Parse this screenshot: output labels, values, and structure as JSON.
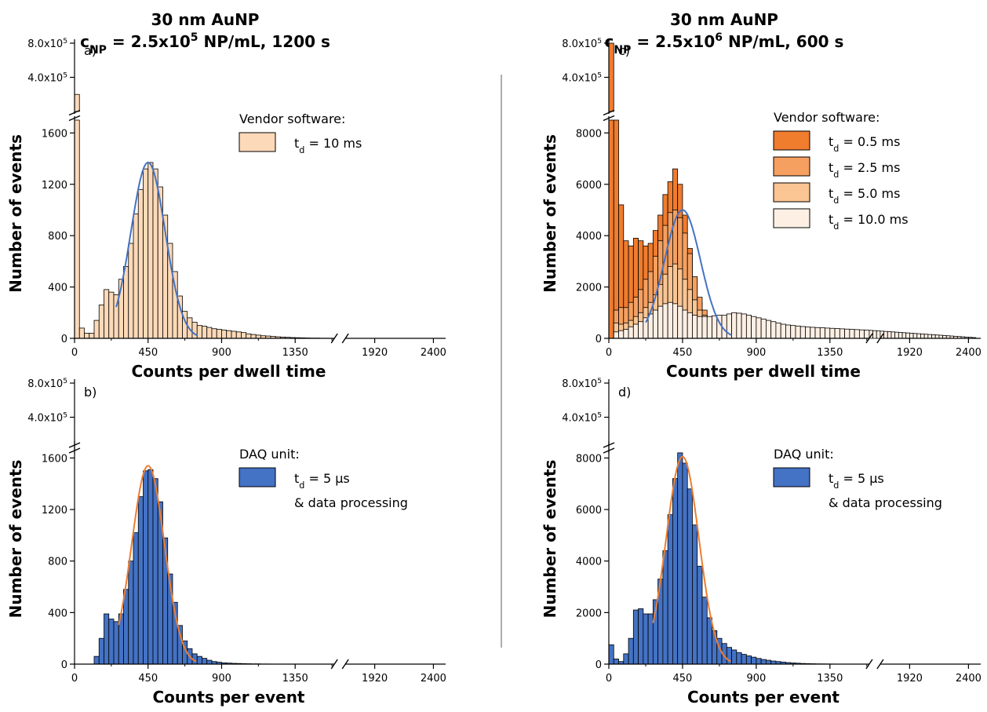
{
  "chart_data": [
    {
      "panel": "a)",
      "type": "bar",
      "title_line1": "30 nm AuNP",
      "title_line2": "c_NP = 2.5x10^5 NP/mL, 1200 s",
      "xlabel": "Counts per dwell time",
      "ylabel": "Number of events",
      "bin_width": 30,
      "x_ticks_lower": [
        "0",
        "450",
        "900",
        "1350"
      ],
      "x_ticks_upper": [
        "1920",
        "2400"
      ],
      "x_break": [
        1590,
        1680
      ],
      "y_ticks_lower": [
        "0",
        "400",
        "800",
        "1200",
        "1600"
      ],
      "y_ticks_upper": [
        "4.0x10^5",
        "8.0x10^5"
      ],
      "ylim_lower": [
        0,
        1700
      ],
      "ylim_upper": [
        0,
        800000
      ],
      "legend_title": "Vendor software:",
      "series": [
        {
          "name": "t_d = 10 ms",
          "legend_label": "10 ms",
          "color": "#fcd9b8",
          "x_start": 0,
          "values": [
            200000,
            80,
            40,
            40,
            140,
            260,
            380,
            360,
            340,
            460,
            560,
            740,
            970,
            1160,
            1320,
            1370,
            1320,
            1180,
            960,
            740,
            520,
            330,
            210,
            160,
            125,
            100,
            95,
            85,
            75,
            70,
            65,
            60,
            55,
            50,
            45,
            35,
            30,
            25,
            20,
            18,
            15,
            12,
            10,
            8,
            6,
            5,
            4,
            3,
            2,
            2,
            1,
            1,
            0
          ]
        }
      ],
      "fit": {
        "type": "gaussian",
        "color": "#4472c4",
        "peak": 1370,
        "center": 450,
        "sigma": 105,
        "range": [
          255,
          750
        ]
      }
    },
    {
      "panel": "b)",
      "type": "bar",
      "xlabel": "Counts per event",
      "ylabel": "Number of events",
      "bin_width": 30,
      "x_ticks_lower": [
        "0",
        "450",
        "900",
        "1350"
      ],
      "x_ticks_upper": [
        "1920",
        "2400"
      ],
      "x_break": [
        1590,
        1680
      ],
      "y_ticks_lower": [
        "0",
        "400",
        "800",
        "1200",
        "1600"
      ],
      "y_ticks_upper": [
        "4.0x10^5",
        "8.0x10^5"
      ],
      "ylim_lower": [
        0,
        1700
      ],
      "ylim_upper": [
        0,
        800000
      ],
      "legend_title": "DAQ unit:",
      "series": [
        {
          "name": "t_d = 5 µs & data processing",
          "legend_label": "5 µs",
          "legend_note": "& data processing",
          "color": "#4472c4",
          "x_start": 0,
          "values": [
            0,
            0,
            0,
            0,
            60,
            200,
            390,
            350,
            330,
            390,
            580,
            800,
            1020,
            1300,
            1500,
            1510,
            1440,
            1260,
            980,
            700,
            480,
            300,
            180,
            120,
            80,
            60,
            45,
            30,
            20,
            15,
            10,
            8,
            6,
            5,
            4,
            3,
            2,
            2,
            1,
            1,
            0
          ]
        }
      ],
      "fit": {
        "type": "gaussian",
        "color": "#ed7d31",
        "peak": 1540,
        "center": 450,
        "sigma": 100,
        "range": [
          270,
          745
        ]
      }
    },
    {
      "panel": "c)",
      "type": "bar",
      "title_line1": "30 nm AuNP",
      "title_line2": "c_NP = 2.5x10^6 NP/mL, 600 s",
      "xlabel": "Counts per dwell time",
      "ylabel": "Number of events",
      "bin_width": 30,
      "x_ticks_lower": [
        "0",
        "450",
        "900",
        "1350"
      ],
      "x_ticks_upper": [
        "1920",
        "2400"
      ],
      "x_break": [
        1590,
        1680
      ],
      "y_ticks_lower": [
        "0",
        "2000",
        "4000",
        "6000",
        "8000"
      ],
      "y_ticks_upper": [
        "4.0x10^5",
        "8.0x10^5"
      ],
      "ylim_lower": [
        0,
        8500
      ],
      "ylim_upper": [
        0,
        800000
      ],
      "legend_title": "Vendor software:",
      "series": [
        {
          "name": "t_d = 0.5 ms",
          "legend_label": "0.5 ms",
          "color": "#f07c2e",
          "x_start": 0,
          "values": [
            800000,
            8500,
            5200,
            3800,
            3600,
            3900,
            3800,
            3600,
            3700,
            4200,
            4800,
            5600,
            6100,
            6600,
            6000,
            4800,
            3500,
            2300,
            1400,
            900
          ]
        },
        {
          "name": "t_d = 2.5 ms",
          "legend_label": "2.5 ms",
          "color": "#f5a060",
          "x_start": 0,
          "values": [
            0,
            1100,
            1200,
            1200,
            1400,
            1600,
            1900,
            2300,
            2600,
            3200,
            3800,
            4400,
            4900,
            5000,
            4700,
            4100,
            3300,
            2400,
            1600,
            1100
          ]
        },
        {
          "name": "t_d = 5.0 ms",
          "legend_label": "5.0 ms",
          "color": "#fac593",
          "x_start": 0,
          "values": [
            0,
            600,
            550,
            600,
            700,
            850,
            1000,
            1200,
            1400,
            1700,
            2100,
            2500,
            2800,
            2900,
            2700,
            2300,
            1900,
            1500,
            1100,
            900
          ]
        },
        {
          "name": "t_d = 10.0 ms",
          "legend_label": "10.0 ms",
          "color": "#fdefe4",
          "x_start": 0,
          "values": [
            0,
            250,
            300,
            350,
            450,
            550,
            650,
            800,
            950,
            1100,
            1250,
            1350,
            1400,
            1350,
            1250,
            1100,
            1000,
            900,
            850,
            850,
            850,
            880,
            900,
            900,
            950,
            1000,
            980,
            950,
            900,
            850,
            800,
            750,
            700,
            650,
            600,
            550,
            520,
            500,
            480,
            460,
            440,
            430,
            420,
            410,
            400,
            390,
            380,
            370,
            360,
            350,
            340,
            330,
            320,
            310,
            300,
            290,
            280,
            270,
            260,
            250,
            240,
            230,
            220,
            210,
            200,
            190,
            180,
            170,
            160,
            150,
            140,
            130,
            120,
            110,
            100,
            90,
            80,
            70,
            60,
            50,
            40,
            30
          ]
        }
      ],
      "fit": {
        "type": "gaussian",
        "color": "#4472c4",
        "peak": 5000,
        "center": 450,
        "sigma": 110,
        "range": [
          225,
          750
        ]
      }
    },
    {
      "panel": "d)",
      "type": "bar",
      "xlabel": "Counts per event",
      "ylabel": "Number of events",
      "bin_width": 30,
      "x_ticks_lower": [
        "0",
        "450",
        "900",
        "1350"
      ],
      "x_ticks_upper": [
        "1920",
        "2400"
      ],
      "x_break": [
        1590,
        1680
      ],
      "y_ticks_lower": [
        "0",
        "2000",
        "4000",
        "6000",
        "8000"
      ],
      "y_ticks_upper": [
        "4.0x10^5",
        "8.0x10^5"
      ],
      "ylim_lower": [
        0,
        8500
      ],
      "ylim_upper": [
        0,
        800000
      ],
      "legend_title": "DAQ unit:",
      "series": [
        {
          "name": "t_d = 5 µs & data processing",
          "legend_label": "5 µs",
          "legend_note": "& data processing",
          "color": "#4472c4",
          "x_start": 0,
          "values": [
            750,
            200,
            100,
            400,
            1000,
            2100,
            2150,
            1950,
            1950,
            2500,
            3300,
            4400,
            5800,
            7200,
            8200,
            7800,
            6800,
            5400,
            3800,
            2600,
            1800,
            1300,
            1000,
            800,
            650,
            550,
            450,
            380,
            320,
            270,
            220,
            180,
            150,
            120,
            100,
            80,
            60,
            45,
            35,
            25,
            20,
            15,
            10,
            8,
            6,
            4,
            3,
            2,
            1
          ]
        }
      ],
      "fit": {
        "type": "gaussian",
        "color": "#ed7d31",
        "peak": 8050,
        "center": 450,
        "sigma": 100,
        "range": [
          270,
          745
        ]
      }
    }
  ]
}
